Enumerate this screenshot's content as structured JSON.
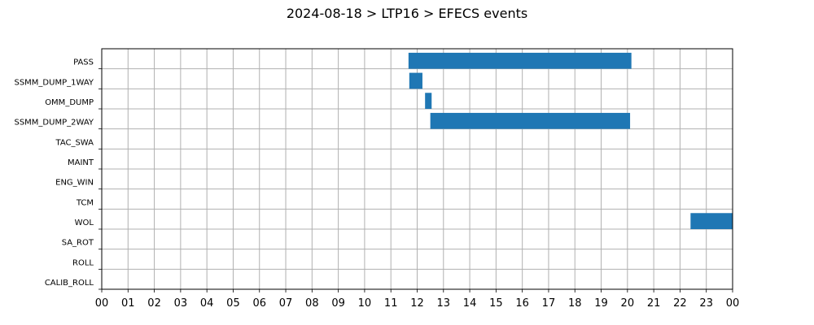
{
  "chart_data": {
    "type": "gantt",
    "title": "2024-08-18 > LTP16 > EFECS events",
    "xlabel": "",
    "ylabel": "",
    "x_unit": "hours",
    "xlim": [
      0,
      24
    ],
    "x_tick_labels": [
      "00",
      "01",
      "02",
      "03",
      "04",
      "05",
      "06",
      "07",
      "08",
      "09",
      "10",
      "11",
      "12",
      "13",
      "14",
      "15",
      "16",
      "17",
      "18",
      "19",
      "20",
      "21",
      "22",
      "23",
      "00"
    ],
    "grid": true,
    "categories": [
      "PASS",
      "SSMM_DUMP_1WAY",
      "OMM_DUMP",
      "SSMM_DUMP_2WAY",
      "TAC_SWA",
      "MAINT",
      "ENG_WIN",
      "TCM",
      "WOL",
      "SA_ROT",
      "ROLL",
      "CALIB_ROLL"
    ],
    "events": [
      {
        "category": "PASS",
        "start": 11.67,
        "end": 20.15
      },
      {
        "category": "SSMM_DUMP_1WAY",
        "start": 11.7,
        "end": 12.2
      },
      {
        "category": "OMM_DUMP",
        "start": 12.3,
        "end": 12.55
      },
      {
        "category": "SSMM_DUMP_2WAY",
        "start": 12.5,
        "end": 20.1
      },
      {
        "category": "WOL",
        "start": 22.4,
        "end": 24.0
      }
    ],
    "bar_color": "#1f77b4"
  }
}
